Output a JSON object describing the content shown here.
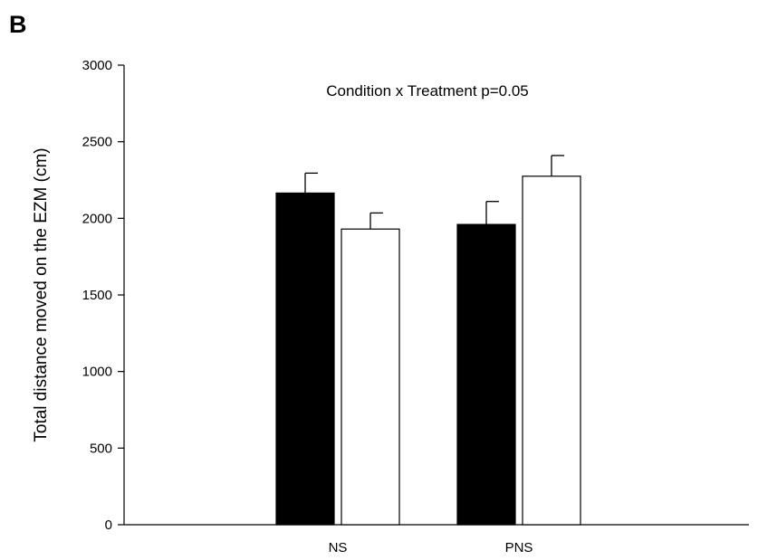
{
  "panel_label": "B",
  "chart_data": {
    "type": "bar",
    "categories": [
      "NS",
      "PNS"
    ],
    "series": [
      {
        "values": [
          2165,
          1960
        ],
        "errors": [
          130,
          150
        ],
        "color": "#000000"
      },
      {
        "values": [
          1930,
          2275
        ],
        "errors": [
          105,
          135
        ],
        "color": "#ffffff"
      }
    ],
    "ylabel": "Total distance moved on the EZM (cm)",
    "xlabel": "",
    "ylim": [
      0,
      3000
    ],
    "yticks": [
      0,
      500,
      1000,
      1500,
      2000,
      2500,
      3000
    ],
    "annotation": "Condition x Treatment p=0.05",
    "grid": false
  }
}
